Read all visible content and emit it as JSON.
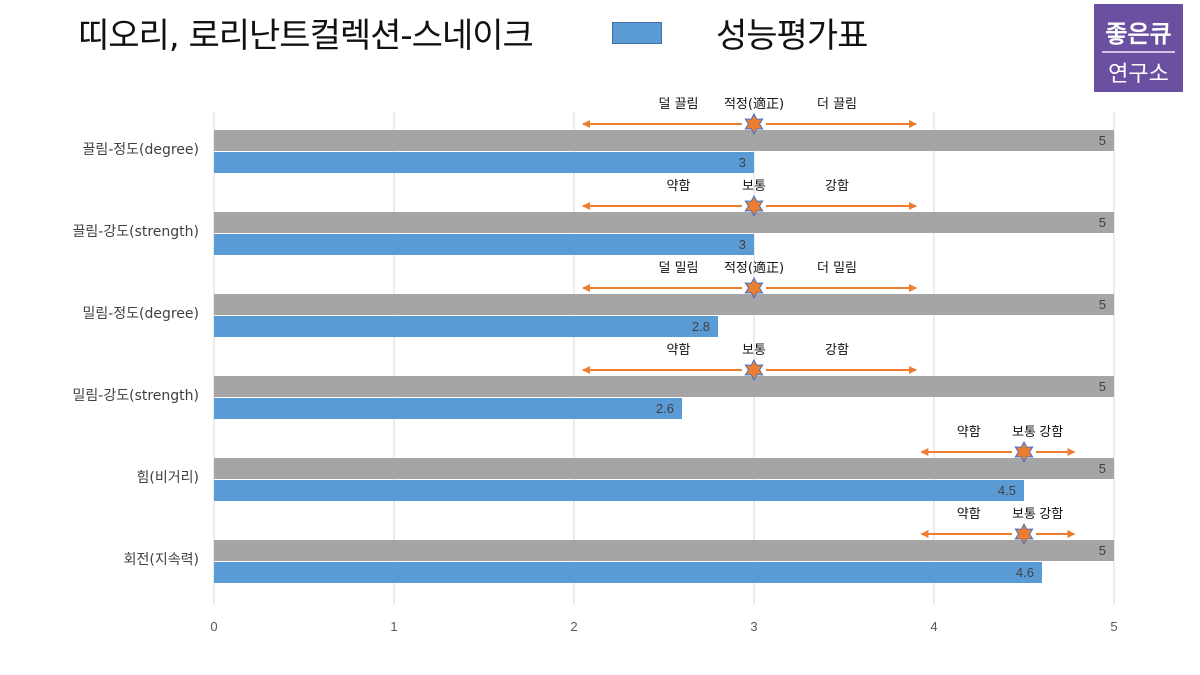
{
  "title": "띠오리, 로리난트컬렉션-스네이크",
  "legend": {
    "label": "성능평가표",
    "color": "#5b9bd5"
  },
  "logo": {
    "line1": "좋은큐",
    "line2": "연구소"
  },
  "colors": {
    "max_bar": "#a5a5a5",
    "value_bar": "#5b9bd5",
    "arrow": "#ed7d31",
    "star": "#ed7d31",
    "grid": "#d9d9d9"
  },
  "chart_data": {
    "type": "bar",
    "orientation": "horizontal",
    "title": "띠오리, 로리난트컬렉션-스네이크",
    "xlim": [
      0,
      5
    ],
    "xticks": [
      "0",
      "1",
      "2",
      "3",
      "4",
      "5"
    ],
    "grid": true,
    "categories": [
      "끌림-정도(degree)",
      "끌림-강도(strength)",
      "밀림-정도(degree)",
      "밀림-강도(strength)",
      "힘(비거리)",
      "회전(지속력)"
    ],
    "series": [
      {
        "name": "",
        "values": [
          5,
          5,
          5,
          5,
          5,
          5
        ]
      },
      {
        "name": "성능평가표",
        "values": [
          3,
          3,
          2.8,
          2.6,
          4.5,
          4.6
        ]
      }
    ],
    "data_labels_max": [
      "5",
      "5",
      "5",
      "5",
      "5",
      "5"
    ],
    "data_labels_value": [
      "3",
      "3",
      "2.8",
      "2.6",
      "4.5",
      "4.6"
    ],
    "scales": [
      {
        "left": "덜 끌림",
        "center": "적정(適正)",
        "right": "더 끌림",
        "marker": 3,
        "from": 2.05,
        "to": 3.9
      },
      {
        "left": "약함",
        "center": "보통",
        "right": "강함",
        "marker": 3,
        "from": 2.05,
        "to": 3.9
      },
      {
        "left": "덜 밀림",
        "center": "적정(適正)",
        "right": "더 밀림",
        "marker": 3,
        "from": 2.05,
        "to": 3.9
      },
      {
        "left": "약함",
        "center": "보통",
        "right": "강함",
        "marker": 3,
        "from": 2.05,
        "to": 3.9
      },
      {
        "left": "약함",
        "center": "보통",
        "right": "강함",
        "marker": 4.5,
        "from": 3.93,
        "to": 4.78
      },
      {
        "left": "약함",
        "center": "보통",
        "right": "강함",
        "marker": 4.5,
        "from": 3.93,
        "to": 4.78
      }
    ]
  }
}
